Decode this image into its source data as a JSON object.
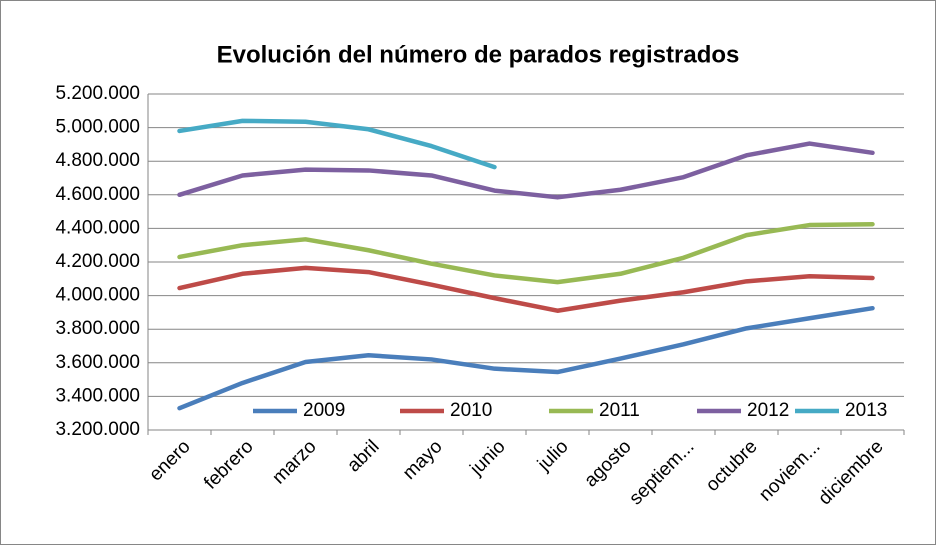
{
  "chart_data": {
    "type": "line",
    "title": "Evolución del número de parados registrados",
    "categories": [
      "enero",
      "febrero",
      "marzo",
      "abril",
      "mayo",
      "junio",
      "julio",
      "agosto",
      "septiem...",
      "octubre",
      "noviem...",
      "diciembre"
    ],
    "series": [
      {
        "name": "2009",
        "color": "#4a7ebb",
        "values": [
          3330000,
          3480000,
          3605000,
          3645000,
          3620000,
          3565000,
          3545000,
          3625000,
          3710000,
          3805000,
          3865000,
          3925000
        ]
      },
      {
        "name": "2010",
        "color": "#be4b48",
        "values": [
          4045000,
          4130000,
          4165000,
          4140000,
          4065000,
          3985000,
          3910000,
          3970000,
          4020000,
          4085000,
          4115000,
          4105000
        ]
      },
      {
        "name": "2011",
        "color": "#98b954",
        "values": [
          4230000,
          4300000,
          4335000,
          4270000,
          4190000,
          4120000,
          4080000,
          4130000,
          4225000,
          4360000,
          4420000,
          4425000
        ]
      },
      {
        "name": "2012",
        "color": "#7d60a0",
        "values": [
          4600000,
          4715000,
          4750000,
          4745000,
          4715000,
          4625000,
          4585000,
          4630000,
          4705000,
          4835000,
          4905000,
          4850000
        ]
      },
      {
        "name": "2013",
        "color": "#46aac5",
        "values": [
          4980000,
          5040000,
          5035000,
          4990000,
          4890000,
          4765000,
          null,
          null,
          null,
          null,
          null,
          null
        ]
      }
    ],
    "ylim": [
      3200000,
      5200000
    ],
    "yticks": [
      {
        "value": 3200000,
        "label": "3.200.000"
      },
      {
        "value": 3400000,
        "label": "3.400.000"
      },
      {
        "value": 3600000,
        "label": "3.600.000"
      },
      {
        "value": 3800000,
        "label": "3.800.000"
      },
      {
        "value": 4000000,
        "label": "4.000.000"
      },
      {
        "value": 4200000,
        "label": "4.200.000"
      },
      {
        "value": 4400000,
        "label": "4.400.000"
      },
      {
        "value": 4600000,
        "label": "4.600.000"
      },
      {
        "value": 4800000,
        "label": "4.800.000"
      },
      {
        "value": 5000000,
        "label": "5.000.000"
      },
      {
        "value": 5200000,
        "label": "5.200.000"
      }
    ],
    "grid": true,
    "legend": "bottom"
  }
}
